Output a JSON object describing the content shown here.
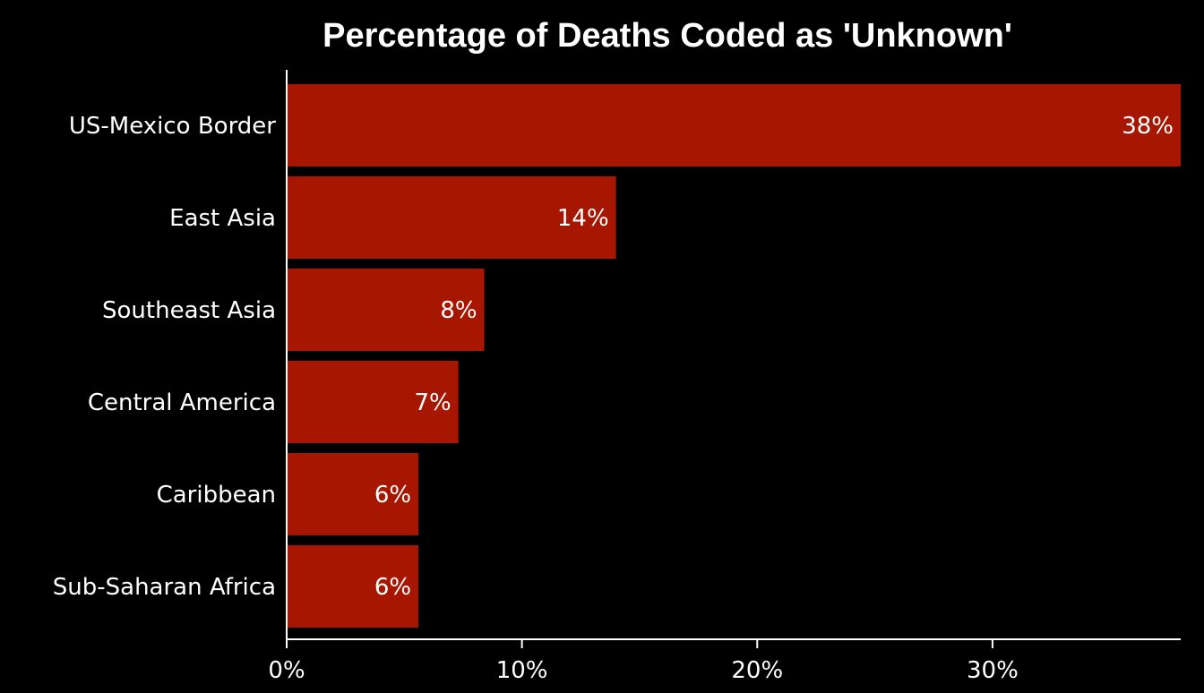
{
  "chart_data": {
    "type": "bar",
    "orientation": "horizontal",
    "title": "Percentage of Deaths Coded as 'Unknown'",
    "xlabel": "",
    "ylabel": "",
    "categories": [
      "US-Mexico Border",
      "East Asia",
      "Southeast Asia",
      "Central America",
      "Caribbean",
      "Sub-Saharan Africa"
    ],
    "values": [
      38,
      14,
      8.4,
      7.3,
      5.6,
      5.6
    ],
    "value_labels": [
      "38%",
      "14%",
      "8%",
      "7%",
      "6%",
      "6%"
    ],
    "x_ticks": [
      {
        "value": 0,
        "label": "0%"
      },
      {
        "value": 10,
        "label": "10%"
      },
      {
        "value": 20,
        "label": "20%"
      },
      {
        "value": 30,
        "label": "30%"
      }
    ],
    "xlim": [
      0,
      38
    ],
    "grid": false,
    "legend": "none",
    "colors": {
      "background": "#000000",
      "bar": "#a61600",
      "text": "#ffffff",
      "axis": "#ffffff"
    }
  }
}
